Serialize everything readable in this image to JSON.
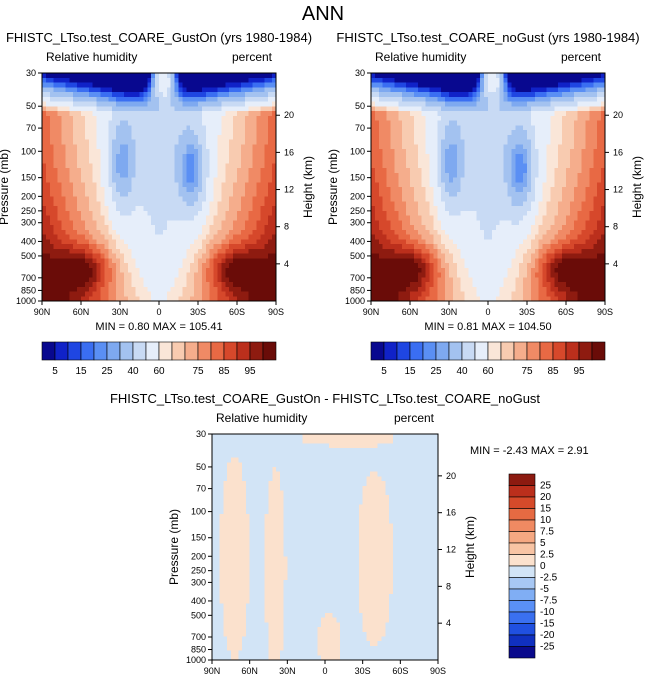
{
  "page_title": "ANN",
  "colors": {
    "abs": [
      "#08088f",
      "#1022c8",
      "#1f46e2",
      "#3a6ef2",
      "#5a8ff4",
      "#7ea9f0",
      "#a3c2f0",
      "#c8daf4",
      "#e6eefa",
      "#fae6d8",
      "#f8cbb0",
      "#f5ad8c",
      "#f08a65",
      "#e86944",
      "#d6482b",
      "#bb2f1c",
      "#8e1b10",
      "#6a0c08"
    ],
    "diff": [
      "#0a0a8c",
      "#1030c0",
      "#2050e0",
      "#3a70f0",
      "#5a90f6",
      "#80aef4",
      "#a8c8f4",
      "#d2e4f6",
      "#fbe1cd",
      "#f8c4a4",
      "#f5a882",
      "#f08a62",
      "#e66a42",
      "#d64a2a",
      "#bb2f1c",
      "#8c1a10"
    ]
  },
  "chart_data": [
    {
      "type": "heatmap",
      "title": "FHISTC_LTso.test_COARE_GustOn (yrs 1980-1984)",
      "left_label": "Relative humidity",
      "right_label": "percent",
      "xlabel": "",
      "ylabel": "Pressure (mb)",
      "y2label": "Height (km)",
      "x_ticks": [
        "90N",
        "60N",
        "30N",
        "0",
        "30S",
        "60S",
        "90S"
      ],
      "y_ticks": [
        30,
        50,
        70,
        100,
        150,
        200,
        250,
        300,
        400,
        500,
        700,
        850,
        1000
      ],
      "y2_ticks": [
        20,
        16,
        12,
        8,
        4
      ],
      "stats": {
        "min_label": "MIN =",
        "min": "0.80",
        "max_label": "MAX =",
        "max": "105.41"
      },
      "colorbar": {
        "orientation": "horizontal",
        "tick_labels": [
          "5",
          "15",
          "25",
          "40",
          "60",
          "75",
          "85",
          "95"
        ]
      }
    },
    {
      "type": "heatmap",
      "title": "FHISTC_LTso.test_COARE_noGust (yrs 1980-1984)",
      "left_label": "Relative humidity",
      "right_label": "percent",
      "xlabel": "",
      "ylabel": "Pressure (mb)",
      "y2label": "Height (km)",
      "x_ticks": [
        "90N",
        "60N",
        "30N",
        "0",
        "30S",
        "60S",
        "90S"
      ],
      "y_ticks": [
        30,
        50,
        70,
        100,
        150,
        200,
        250,
        300,
        400,
        500,
        700,
        850,
        1000
      ],
      "y2_ticks": [
        20,
        16,
        12,
        8,
        4
      ],
      "stats": {
        "min_label": "MIN =",
        "min": "0.81",
        "max_label": "MAX =",
        "max": "104.50"
      },
      "colorbar": {
        "orientation": "horizontal",
        "tick_labels": [
          "5",
          "15",
          "25",
          "40",
          "60",
          "75",
          "85",
          "95"
        ]
      }
    },
    {
      "type": "heatmap",
      "title": "FHISTC_LTso.test_COARE_GustOn - FHISTC_LTso.test_COARE_noGust",
      "left_label": "Relative humidity",
      "right_label": "percent",
      "xlabel": "",
      "ylabel": "Pressure (mb)",
      "y2label": "Height (km)",
      "x_ticks": [
        "90N",
        "60N",
        "30N",
        "0",
        "30S",
        "60S",
        "90S"
      ],
      "y_ticks": [
        30,
        50,
        70,
        100,
        150,
        200,
        250,
        300,
        400,
        500,
        700,
        850,
        1000
      ],
      "y2_ticks": [
        20,
        16,
        12,
        8,
        4
      ],
      "stats": {
        "min_label": "MIN =",
        "min": "-2.43",
        "max_label": "MAX =",
        "max": "2.91"
      },
      "colorbar": {
        "orientation": "vertical",
        "tick_labels": [
          "25",
          "20",
          "15",
          "10",
          "7.5",
          "5",
          "2.5",
          "0",
          "-2.5",
          "-5",
          "-7.5",
          "-10",
          "-15",
          "-20",
          "-25"
        ]
      }
    }
  ]
}
